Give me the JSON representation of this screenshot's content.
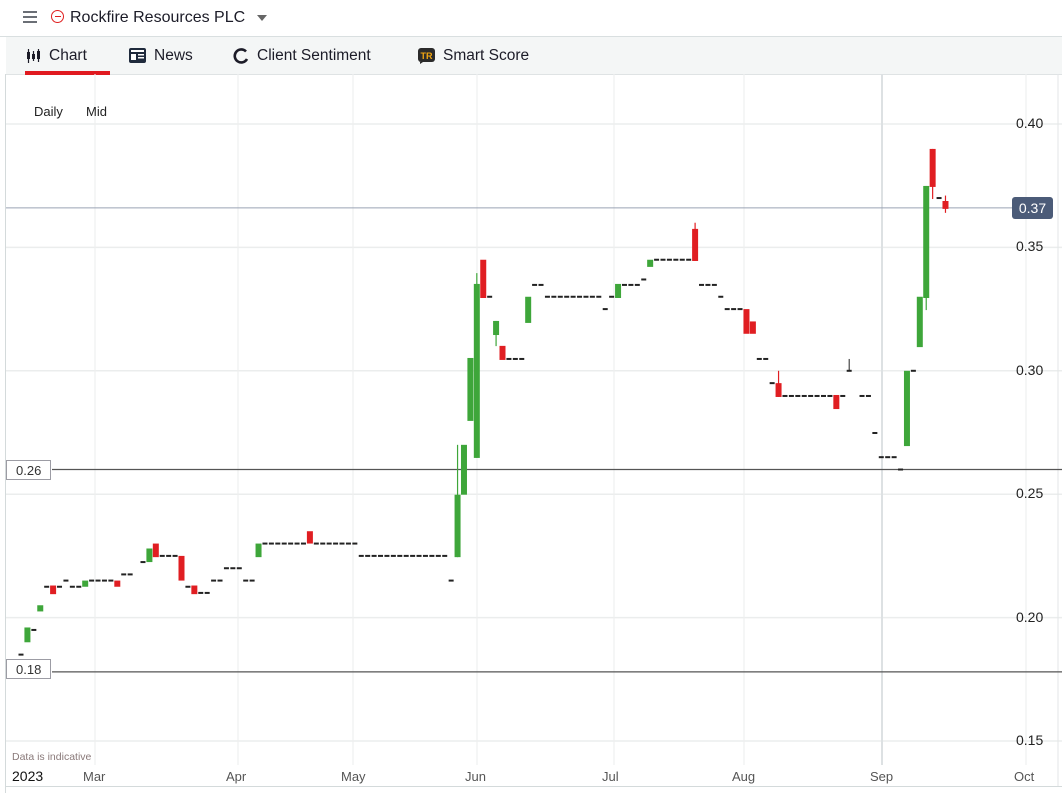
{
  "header": {
    "title": "Rockfire Resources PLC"
  },
  "tabs": [
    {
      "label": "Chart",
      "icon": "candlestick-icon",
      "active": true
    },
    {
      "label": "News",
      "icon": "newspaper-icon"
    },
    {
      "label": "Client Sentiment",
      "icon": "sentiment-ring-icon"
    },
    {
      "label": "Smart Score",
      "icon": "tipranks-icon"
    }
  ],
  "controls": {
    "interval": "Daily",
    "price_type": "Mid"
  },
  "footer_note": "Data is indicative",
  "colors": {
    "up": "#3ea63a",
    "down": "#e01e22",
    "accent": "#e0191f",
    "current_price_bg": "#4b5b78"
  },
  "chart_data": {
    "type": "candlestick",
    "title": "Rockfire Resources PLC",
    "xlabel": "",
    "ylabel": "",
    "ylim": [
      0.135,
      0.42
    ],
    "y_ticks": [
      "0.40",
      "0.35",
      "0.30",
      "0.25",
      "0.20",
      "0.15"
    ],
    "y_tick_values": [
      0.4,
      0.35,
      0.3,
      0.25,
      0.2,
      0.15
    ],
    "x_year": "2023",
    "x_ticks": [
      "Mar",
      "Apr",
      "May",
      "Jun",
      "Jul",
      "Aug",
      "Sep",
      "Oct"
    ],
    "current_price": {
      "value": 0.366,
      "label": "0.37"
    },
    "horizontal_lines": [
      {
        "value": 0.26,
        "label": "0.26"
      },
      {
        "value": 0.178,
        "label": "0.18"
      }
    ],
    "candle_fields": [
      "session",
      "open",
      "high",
      "low",
      "close"
    ],
    "candles": [
      [
        0,
        0.185,
        0.185,
        0.185,
        0.185
      ],
      [
        1,
        0.19,
        0.196,
        0.19,
        0.196
      ],
      [
        2,
        0.195,
        0.195,
        0.195,
        0.195
      ],
      [
        3,
        0.2025,
        0.205,
        0.2025,
        0.205
      ],
      [
        4,
        0.2125,
        0.2125,
        0.2125,
        0.2125
      ],
      [
        5,
        0.213,
        0.213,
        0.2095,
        0.2095
      ],
      [
        6,
        0.2125,
        0.2125,
        0.2125,
        0.2125
      ],
      [
        7,
        0.215,
        0.215,
        0.215,
        0.215
      ],
      [
        8,
        0.2125,
        0.2125,
        0.2125,
        0.2125
      ],
      [
        9,
        0.2125,
        0.2125,
        0.2125,
        0.2125
      ],
      [
        10,
        0.2125,
        0.215,
        0.2125,
        0.215
      ],
      [
        11,
        0.215,
        0.215,
        0.215,
        0.215
      ],
      [
        12,
        0.215,
        0.215,
        0.215,
        0.215
      ],
      [
        13,
        0.215,
        0.215,
        0.215,
        0.215
      ],
      [
        14,
        0.215,
        0.215,
        0.215,
        0.215
      ],
      [
        15,
        0.215,
        0.215,
        0.2125,
        0.2125
      ],
      [
        16,
        0.2175,
        0.2175,
        0.2175,
        0.2175
      ],
      [
        17,
        0.2175,
        0.2175,
        0.2175,
        0.2175
      ],
      [
        19,
        0.2225,
        0.2225,
        0.2225,
        0.2225
      ],
      [
        20,
        0.2225,
        0.228,
        0.2225,
        0.228
      ],
      [
        21,
        0.23,
        0.23,
        0.2245,
        0.2245
      ],
      [
        22,
        0.225,
        0.225,
        0.225,
        0.225
      ],
      [
        23,
        0.225,
        0.225,
        0.225,
        0.225
      ],
      [
        24,
        0.225,
        0.225,
        0.225,
        0.225
      ],
      [
        25,
        0.225,
        0.225,
        0.215,
        0.215
      ],
      [
        26,
        0.2125,
        0.2125,
        0.2125,
        0.2125
      ],
      [
        27,
        0.213,
        0.213,
        0.2095,
        0.2095
      ],
      [
        28,
        0.21,
        0.21,
        0.21,
        0.21
      ],
      [
        29,
        0.21,
        0.21,
        0.21,
        0.21
      ],
      [
        30,
        0.215,
        0.215,
        0.215,
        0.215
      ],
      [
        31,
        0.215,
        0.215,
        0.215,
        0.215
      ],
      [
        32,
        0.22,
        0.22,
        0.22,
        0.22
      ],
      [
        33,
        0.22,
        0.22,
        0.22,
        0.22
      ],
      [
        34,
        0.22,
        0.22,
        0.22,
        0.22
      ],
      [
        35,
        0.215,
        0.215,
        0.215,
        0.215
      ],
      [
        36,
        0.215,
        0.215,
        0.215,
        0.215
      ],
      [
        37,
        0.2245,
        0.23,
        0.2245,
        0.23
      ],
      [
        38,
        0.23,
        0.23,
        0.23,
        0.23
      ],
      [
        39,
        0.23,
        0.23,
        0.23,
        0.23
      ],
      [
        40,
        0.23,
        0.23,
        0.23,
        0.23
      ],
      [
        41,
        0.23,
        0.23,
        0.23,
        0.23
      ],
      [
        42,
        0.23,
        0.23,
        0.23,
        0.23
      ],
      [
        43,
        0.23,
        0.23,
        0.23,
        0.23
      ],
      [
        44,
        0.23,
        0.23,
        0.23,
        0.23
      ],
      [
        45,
        0.235,
        0.235,
        0.23,
        0.23
      ],
      [
        46,
        0.23,
        0.23,
        0.23,
        0.23
      ],
      [
        47,
        0.23,
        0.23,
        0.23,
        0.23
      ],
      [
        48,
        0.23,
        0.23,
        0.23,
        0.23
      ],
      [
        49,
        0.23,
        0.23,
        0.23,
        0.23
      ],
      [
        50,
        0.23,
        0.23,
        0.23,
        0.23
      ],
      [
        51,
        0.23,
        0.23,
        0.23,
        0.23
      ],
      [
        52,
        0.23,
        0.23,
        0.23,
        0.23
      ],
      [
        53,
        0.225,
        0.225,
        0.225,
        0.225
      ],
      [
        54,
        0.225,
        0.225,
        0.225,
        0.225
      ],
      [
        55,
        0.225,
        0.225,
        0.225,
        0.225
      ],
      [
        56,
        0.225,
        0.225,
        0.225,
        0.225
      ],
      [
        57,
        0.225,
        0.225,
        0.225,
        0.225
      ],
      [
        58,
        0.225,
        0.225,
        0.225,
        0.225
      ],
      [
        59,
        0.225,
        0.225,
        0.225,
        0.225
      ],
      [
        60,
        0.225,
        0.225,
        0.225,
        0.225
      ],
      [
        61,
        0.225,
        0.225,
        0.225,
        0.225
      ],
      [
        62,
        0.225,
        0.225,
        0.225,
        0.225
      ],
      [
        63,
        0.225,
        0.225,
        0.225,
        0.225
      ],
      [
        64,
        0.225,
        0.225,
        0.225,
        0.225
      ],
      [
        65,
        0.225,
        0.225,
        0.225,
        0.225
      ],
      [
        66,
        0.225,
        0.225,
        0.225,
        0.225
      ],
      [
        67,
        0.215,
        0.215,
        0.215,
        0.215
      ],
      [
        68,
        0.2245,
        0.27,
        0.2245,
        0.2498
      ],
      [
        69,
        0.2498,
        0.27,
        0.2498,
        0.27
      ],
      [
        70,
        0.2797,
        0.3052,
        0.2797,
        0.3052
      ],
      [
        71,
        0.2647,
        0.3396,
        0.2647,
        0.3352
      ],
      [
        72,
        0.345,
        0.345,
        0.3295,
        0.3295
      ],
      [
        73,
        0.33,
        0.33,
        0.33,
        0.33
      ],
      [
        74,
        0.3145,
        0.3202,
        0.31,
        0.3202
      ],
      [
        75,
        0.3101,
        0.3101,
        0.3044,
        0.3044
      ],
      [
        76,
        0.3048,
        0.3048,
        0.3048,
        0.3048
      ],
      [
        77,
        0.3048,
        0.3048,
        0.3048,
        0.3048
      ],
      [
        78,
        0.3048,
        0.3048,
        0.3048,
        0.3048
      ],
      [
        79,
        0.3194,
        0.33,
        0.3194,
        0.33
      ],
      [
        80,
        0.3348,
        0.3348,
        0.3348,
        0.3348
      ],
      [
        81,
        0.3348,
        0.3348,
        0.3348,
        0.3348
      ],
      [
        82,
        0.33,
        0.33,
        0.33,
        0.33
      ],
      [
        83,
        0.33,
        0.33,
        0.33,
        0.33
      ],
      [
        84,
        0.33,
        0.33,
        0.33,
        0.33
      ],
      [
        85,
        0.33,
        0.33,
        0.33,
        0.33
      ],
      [
        86,
        0.33,
        0.33,
        0.33,
        0.33
      ],
      [
        87,
        0.33,
        0.33,
        0.33,
        0.33
      ],
      [
        88,
        0.33,
        0.33,
        0.33,
        0.33
      ],
      [
        89,
        0.33,
        0.33,
        0.33,
        0.33
      ],
      [
        90,
        0.33,
        0.33,
        0.33,
        0.33
      ],
      [
        91,
        0.325,
        0.325,
        0.325,
        0.325
      ],
      [
        92,
        0.33,
        0.33,
        0.33,
        0.33
      ],
      [
        93,
        0.3295,
        0.3352,
        0.3295,
        0.3352
      ],
      [
        94,
        0.3348,
        0.3348,
        0.3348,
        0.3348
      ],
      [
        95,
        0.3348,
        0.3348,
        0.3348,
        0.3348
      ],
      [
        96,
        0.3348,
        0.3348,
        0.3348,
        0.3348
      ],
      [
        97,
        0.337,
        0.337,
        0.337,
        0.337
      ],
      [
        98,
        0.3421,
        0.345,
        0.3421,
        0.345
      ],
      [
        99,
        0.345,
        0.345,
        0.345,
        0.345
      ],
      [
        100,
        0.345,
        0.345,
        0.345,
        0.345
      ],
      [
        101,
        0.345,
        0.345,
        0.345,
        0.345
      ],
      [
        102,
        0.345,
        0.345,
        0.345,
        0.345
      ],
      [
        103,
        0.345,
        0.345,
        0.345,
        0.345
      ],
      [
        104,
        0.345,
        0.345,
        0.345,
        0.345
      ],
      [
        105,
        0.3575,
        0.36,
        0.3445,
        0.3445
      ],
      [
        106,
        0.3348,
        0.3348,
        0.3348,
        0.3348
      ],
      [
        107,
        0.3348,
        0.3348,
        0.3348,
        0.3348
      ],
      [
        108,
        0.3348,
        0.3348,
        0.3348,
        0.3348
      ],
      [
        109,
        0.33,
        0.33,
        0.33,
        0.33
      ],
      [
        110,
        0.325,
        0.325,
        0.325,
        0.325
      ],
      [
        111,
        0.325,
        0.325,
        0.325,
        0.325
      ],
      [
        112,
        0.325,
        0.325,
        0.325,
        0.325
      ],
      [
        113,
        0.325,
        0.325,
        0.315,
        0.315
      ],
      [
        114,
        0.32,
        0.32,
        0.315,
        0.315
      ],
      [
        115,
        0.3048,
        0.3048,
        0.3048,
        0.3048
      ],
      [
        116,
        0.3048,
        0.3048,
        0.3048,
        0.3048
      ],
      [
        117,
        0.295,
        0.295,
        0.295,
        0.295
      ],
      [
        118,
        0.295,
        0.3,
        0.2894,
        0.2894
      ],
      [
        119,
        0.2898,
        0.2898,
        0.2898,
        0.2898
      ],
      [
        120,
        0.2898,
        0.2898,
        0.2898,
        0.2898
      ],
      [
        121,
        0.2898,
        0.2898,
        0.2898,
        0.2898
      ],
      [
        122,
        0.2898,
        0.2898,
        0.2898,
        0.2898
      ],
      [
        123,
        0.2898,
        0.2898,
        0.2898,
        0.2898
      ],
      [
        124,
        0.2898,
        0.2898,
        0.2898,
        0.2898
      ],
      [
        125,
        0.2898,
        0.2898,
        0.2898,
        0.2898
      ],
      [
        126,
        0.2898,
        0.2898,
        0.2898,
        0.2898
      ],
      [
        127,
        0.2902,
        0.2902,
        0.2845,
        0.2845
      ],
      [
        128,
        0.2898,
        0.2898,
        0.2898,
        0.2898
      ],
      [
        129,
        0.3,
        0.3048,
        0.3,
        0.3
      ],
      [
        131,
        0.2898,
        0.2898,
        0.2898,
        0.2898
      ],
      [
        132,
        0.2898,
        0.2898,
        0.2898,
        0.2898
      ],
      [
        133,
        0.2748,
        0.2748,
        0.2748,
        0.2748
      ],
      [
        134,
        0.265,
        0.265,
        0.265,
        0.265
      ],
      [
        135,
        0.265,
        0.265,
        0.265,
        0.265
      ],
      [
        136,
        0.265,
        0.265,
        0.265,
        0.265
      ],
      [
        137,
        0.26,
        0.26,
        0.26,
        0.26
      ],
      [
        138,
        0.2695,
        0.3,
        0.2695,
        0.3
      ],
      [
        139,
        0.3,
        0.3,
        0.3,
        0.3
      ],
      [
        140,
        0.3096,
        0.33,
        0.3096,
        0.33
      ],
      [
        141,
        0.3295,
        0.3749,
        0.3246,
        0.3749
      ],
      [
        142,
        0.3899,
        0.3899,
        0.3696,
        0.3745
      ],
      [
        143,
        0.37,
        0.37,
        0.37,
        0.37
      ],
      [
        144,
        0.3688,
        0.371,
        0.364,
        0.3656
      ]
    ]
  }
}
